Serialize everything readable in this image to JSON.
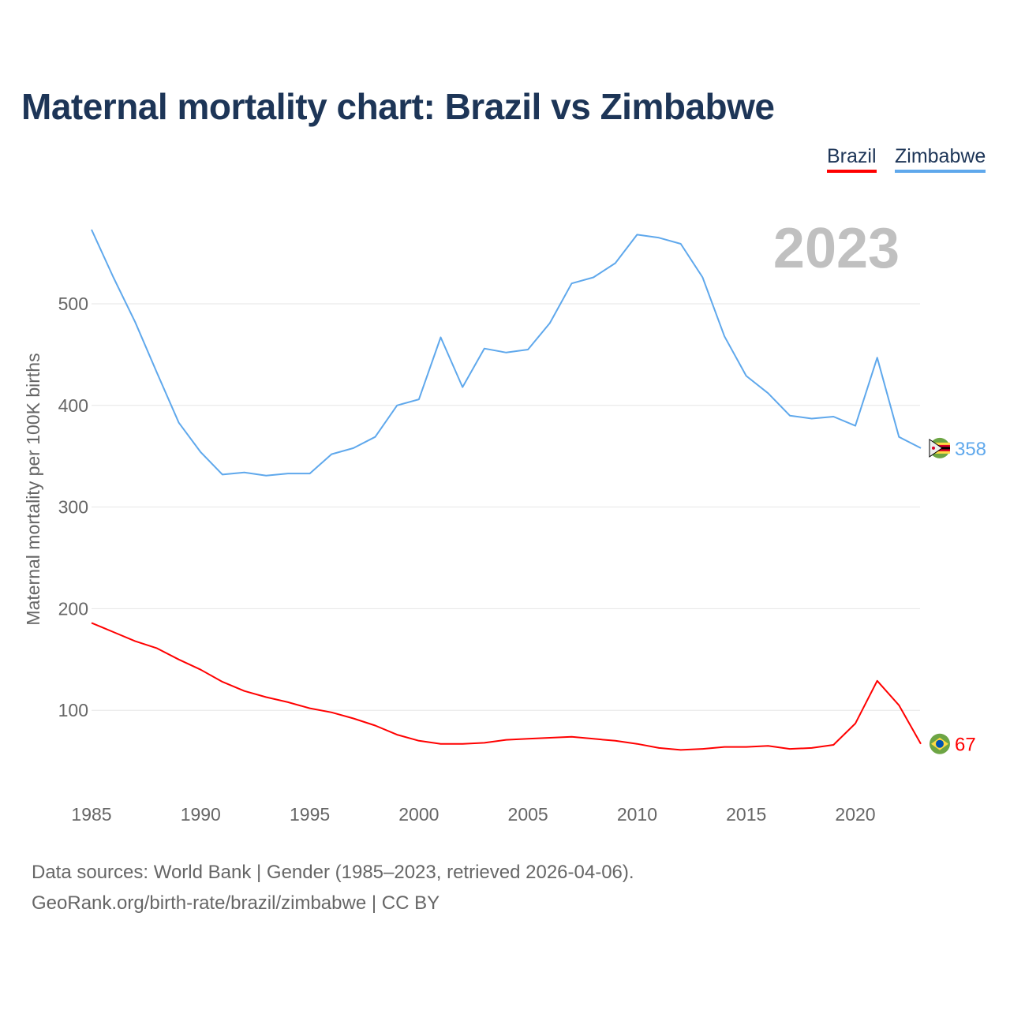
{
  "chart_data": {
    "type": "line",
    "title": "Maternal mortality chart: Brazil vs Zimbabwe",
    "ylabel": "Maternal mortality per 100K births",
    "xlabel": "",
    "year_label": "2023",
    "xlim": [
      1985,
      2023
    ],
    "ylim": [
      25,
      600
    ],
    "yticks": [
      100,
      200,
      300,
      400,
      500
    ],
    "xticks": [
      1985,
      1990,
      1995,
      2000,
      2005,
      2010,
      2015,
      2020
    ],
    "grid": true,
    "legend_position": "top-right",
    "x": [
      1985,
      1986,
      1987,
      1988,
      1989,
      1990,
      1991,
      1992,
      1993,
      1994,
      1995,
      1996,
      1997,
      1998,
      1999,
      2000,
      2001,
      2002,
      2003,
      2004,
      2005,
      2006,
      2007,
      2008,
      2009,
      2010,
      2011,
      2012,
      2013,
      2014,
      2015,
      2016,
      2017,
      2018,
      2019,
      2020,
      2021,
      2022,
      2023
    ],
    "series": [
      {
        "name": "Brazil",
        "color": "#ff0000",
        "end_label": "67",
        "values": [
          186,
          177,
          168,
          161,
          150,
          140,
          128,
          119,
          113,
          108,
          102,
          98,
          92,
          85,
          76,
          70,
          67,
          67,
          68,
          71,
          72,
          73,
          74,
          72,
          70,
          67,
          63,
          61,
          62,
          64,
          64,
          65,
          62,
          63,
          66,
          87,
          129,
          105,
          67
        ]
      },
      {
        "name": "Zimbabwe",
        "color": "#5fa8ec",
        "end_label": "358",
        "values": [
          573,
          526,
          482,
          432,
          383,
          354,
          332,
          334,
          331,
          333,
          333,
          352,
          358,
          369,
          400,
          406,
          467,
          418,
          456,
          452,
          455,
          481,
          520,
          526,
          540,
          568,
          565,
          559,
          526,
          468,
          429,
          412,
          390,
          387,
          389,
          380,
          447,
          369,
          358
        ]
      }
    ]
  },
  "footer": {
    "line1": "Data sources: World Bank | Gender (1985–2023, retrieved 2026-04-06).",
    "line2": "GeoRank.org/birth-rate/brazil/zimbabwe | CC BY"
  }
}
